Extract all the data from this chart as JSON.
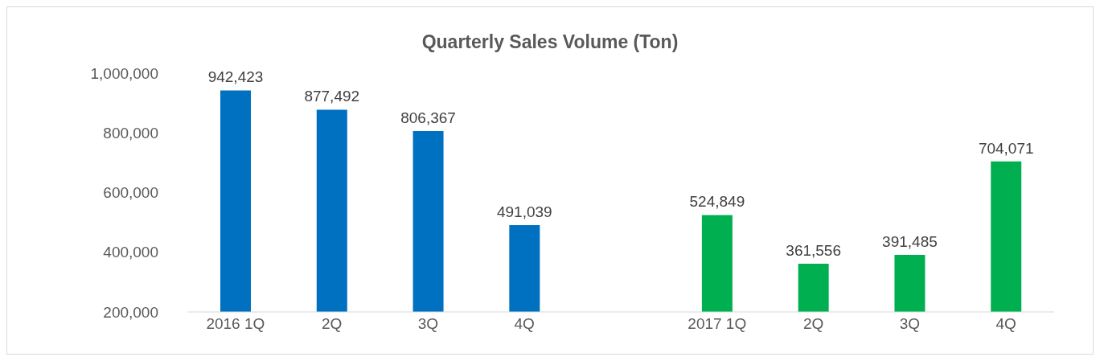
{
  "chart_data": {
    "type": "bar",
    "title": "Quarterly Sales Volume (Ton)",
    "categories": [
      "2016 1Q",
      "2Q",
      "3Q",
      "4Q",
      null,
      "2017 1Q",
      "2Q",
      "3Q",
      "4Q"
    ],
    "values": [
      942423,
      877492,
      806367,
      491039,
      null,
      524849,
      361556,
      391485,
      704071
    ],
    "colors": [
      "#0070c0",
      "#0070c0",
      "#0070c0",
      "#0070c0",
      null,
      "#00b050",
      "#00b050",
      "#00b050",
      "#00b050"
    ],
    "value_labels": [
      "942,423",
      "877,492",
      "806,367",
      "491,039",
      null,
      "524,849",
      "361,556",
      "391,485",
      "704,071"
    ],
    "ylim": [
      200000,
      1000000
    ],
    "yticks": [
      {
        "value": 200000,
        "label": "200,000"
      },
      {
        "value": 400000,
        "label": "400,000"
      },
      {
        "value": 600000,
        "label": "600,000"
      },
      {
        "value": 800000,
        "label": "800,000"
      },
      {
        "value": 1000000,
        "label": "1,000,000"
      }
    ],
    "grid": false,
    "legend": false
  }
}
